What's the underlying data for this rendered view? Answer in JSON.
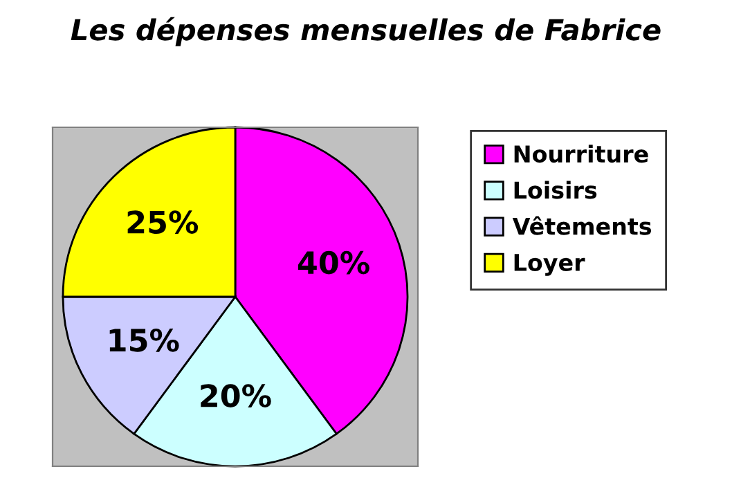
{
  "chart_data": {
    "type": "pie",
    "title": "Les dépenses mensuelles de Fabrice",
    "categories": [
      "Nourriture",
      "Loisirs",
      "Vêtements",
      "Loyer"
    ],
    "values": [
      40,
      20,
      15,
      25
    ],
    "colors": [
      "#ff00ff",
      "#ccffff",
      "#ccccff",
      "#ffff00"
    ],
    "value_labels": [
      "40%",
      "20%",
      "15%",
      "25%"
    ],
    "legend": "right"
  }
}
